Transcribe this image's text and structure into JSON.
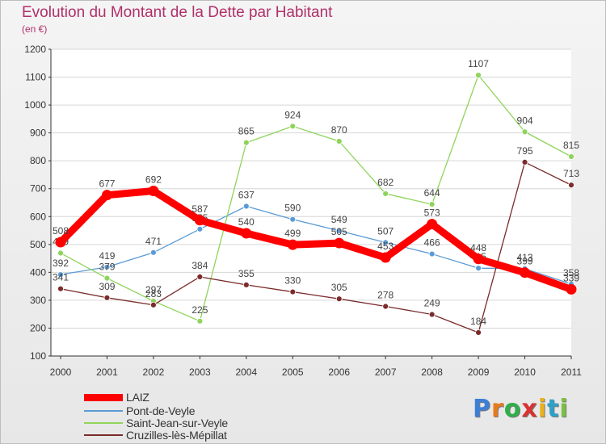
{
  "title": "Evolution du Montant de la Dette par Habitant",
  "unit": "(en €)",
  "logo": {
    "letters": [
      "P",
      "r",
      "o",
      "x",
      "i",
      "t",
      "i"
    ],
    "colors": [
      "#3d7fd6",
      "#e87a1e",
      "#2fae4a",
      "#d83232",
      "#e8b21e",
      "#2fa0c8",
      "#7bc043"
    ]
  },
  "chart_data": {
    "type": "line",
    "categories": [
      "2000",
      "2001",
      "2002",
      "2003",
      "2004",
      "2005",
      "2006",
      "2007",
      "2008",
      "2009",
      "2010",
      "2011"
    ],
    "ylim": [
      100,
      1200
    ],
    "yticks": [
      100,
      200,
      300,
      400,
      500,
      600,
      700,
      800,
      900,
      1000,
      1100,
      1200
    ],
    "grid": "horizontal",
    "legend": "bottom-left",
    "series": [
      {
        "name": "LAIZ",
        "color": "#ff0000",
        "values": [
          508,
          677,
          692,
          587,
          540,
          499,
          505,
          453,
          573,
          448,
          399,
          339
        ]
      },
      {
        "name": "Pont-de-Veyle",
        "color": "#5b9bd5",
        "values": [
          392,
          419,
          471,
          555,
          637,
          590,
          549,
          507,
          466,
          415,
          413,
          358
        ]
      },
      {
        "name": "Saint-Jean-sur-Veyle",
        "color": "#8fd45a",
        "values": [
          469,
          379,
          297,
          225,
          865,
          924,
          870,
          682,
          644,
          1107,
          904,
          815
        ]
      },
      {
        "name": "Cruzilles-lès-Mépillat",
        "color": "#7b2b2b",
        "values": [
          341,
          309,
          283,
          384,
          355,
          330,
          305,
          278,
          249,
          184,
          795,
          713
        ]
      }
    ]
  }
}
